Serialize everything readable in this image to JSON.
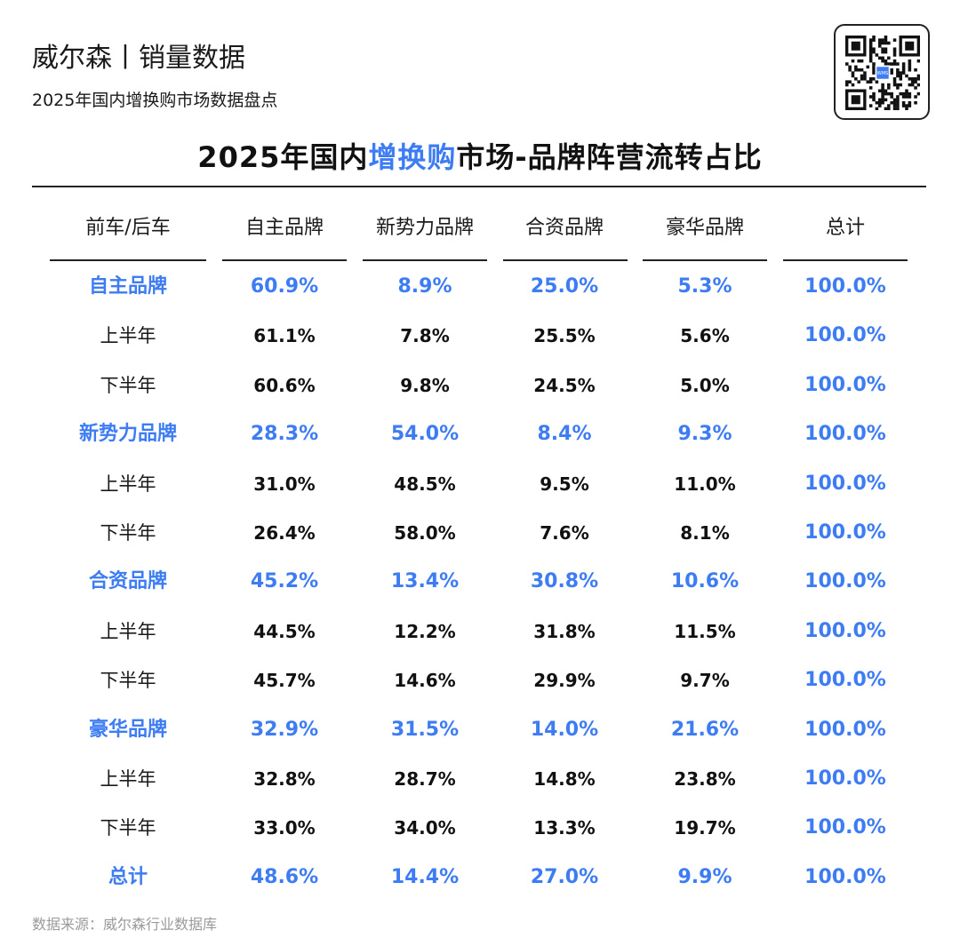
{
  "header": {
    "brand_title": "威尔森丨销量数据",
    "subtitle": "2025年国内增换购市场数据盘点"
  },
  "title": {
    "prefix": "2025年国内",
    "highlight": "增换购",
    "suffix": "市场-品牌阵营流转占比"
  },
  "colors": {
    "accent": "#3d7cf2",
    "text": "#111111",
    "muted": "#9a9a9a"
  },
  "table": {
    "columns": [
      "前车/后车",
      "自主品牌",
      "新势力品牌",
      "合资品牌",
      "豪华品牌",
      "总计"
    ],
    "rows": [
      {
        "kind": "group",
        "label": "自主品牌",
        "values": [
          "60.9%",
          "8.9%",
          "25.0%",
          "5.3%",
          "100.0%"
        ]
      },
      {
        "kind": "sub",
        "label": "上半年",
        "values": [
          "61.1%",
          "7.8%",
          "25.5%",
          "5.6%",
          "100.0%"
        ]
      },
      {
        "kind": "sub",
        "label": "下半年",
        "values": [
          "60.6%",
          "9.8%",
          "24.5%",
          "5.0%",
          "100.0%"
        ]
      },
      {
        "kind": "group",
        "label": "新势力品牌",
        "values": [
          "28.3%",
          "54.0%",
          "8.4%",
          "9.3%",
          "100.0%"
        ]
      },
      {
        "kind": "sub",
        "label": "上半年",
        "values": [
          "31.0%",
          "48.5%",
          "9.5%",
          "11.0%",
          "100.0%"
        ]
      },
      {
        "kind": "sub",
        "label": "下半年",
        "values": [
          "26.4%",
          "58.0%",
          "7.6%",
          "8.1%",
          "100.0%"
        ]
      },
      {
        "kind": "group",
        "label": "合资品牌",
        "values": [
          "45.2%",
          "13.4%",
          "30.8%",
          "10.6%",
          "100.0%"
        ]
      },
      {
        "kind": "sub",
        "label": "上半年",
        "values": [
          "44.5%",
          "12.2%",
          "31.8%",
          "11.5%",
          "100.0%"
        ]
      },
      {
        "kind": "sub",
        "label": "下半年",
        "values": [
          "45.7%",
          "14.6%",
          "29.9%",
          "9.7%",
          "100.0%"
        ]
      },
      {
        "kind": "group",
        "label": "豪华品牌",
        "values": [
          "32.9%",
          "31.5%",
          "14.0%",
          "21.6%",
          "100.0%"
        ]
      },
      {
        "kind": "sub",
        "label": "上半年",
        "values": [
          "32.8%",
          "28.7%",
          "14.8%",
          "23.8%",
          "100.0%"
        ]
      },
      {
        "kind": "sub",
        "label": "下半年",
        "values": [
          "33.0%",
          "34.0%",
          "13.3%",
          "19.7%",
          "100.0%"
        ]
      },
      {
        "kind": "group",
        "label": "总计",
        "values": [
          "48.6%",
          "14.4%",
          "27.0%",
          "9.9%",
          "100.0%"
        ]
      }
    ]
  },
  "footer": {
    "source": "数据来源：威尔森行业数据库"
  },
  "qr": {
    "icon": "qr-code-icon",
    "center_text": "WMS"
  }
}
